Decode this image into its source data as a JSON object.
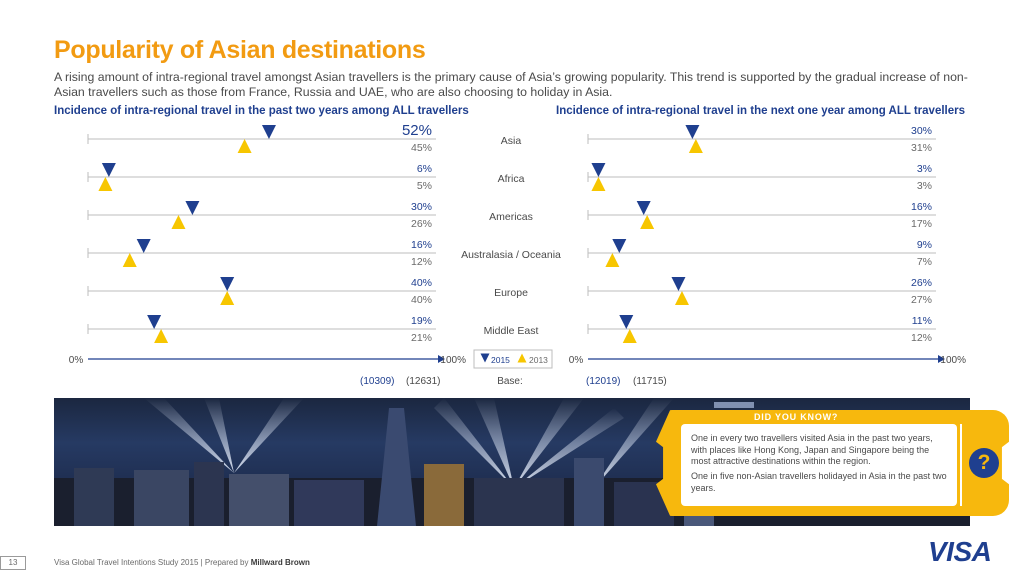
{
  "page": {
    "title": "Popularity of Asian destinations",
    "subtitle": "A rising amount of intra-regional travel amongst Asian travellers is the primary cause of Asia’s growing popularity. This trend is supported by the gradual increase of non-Asian travellers such as those from France, Russia and UAE, who are also choosing to holiday in Asia."
  },
  "chart_data": {
    "type": "dot-plot",
    "categories": [
      "Asia",
      "Africa",
      "Americas",
      "Australasia / Oceania",
      "Europe",
      "Middle East"
    ],
    "legend": [
      {
        "label": "2015",
        "marker": "triangle-down",
        "color": "#1f3f8f"
      },
      {
        "label": "2013",
        "marker": "triangle-up",
        "color": "#f7c600"
      }
    ],
    "axis": {
      "min_label": "0%",
      "max_label": "100%",
      "range": [
        0,
        100
      ]
    },
    "base_label": "Base:",
    "panels": [
      {
        "title": "Incidence of intra-regional travel in the past two years among ALL travellers",
        "values_2015": [
          52,
          6,
          30,
          16,
          40,
          19
        ],
        "values_2013": [
          45,
          5,
          26,
          12,
          40,
          21
        ],
        "labels_2015": [
          "52%",
          "6%",
          "30%",
          "16%",
          "40%",
          "19%"
        ],
        "labels_2013": [
          "45%",
          "5%",
          "26%",
          "12%",
          "40%",
          "21%"
        ],
        "base": [
          "(10309)",
          "(12631)"
        ]
      },
      {
        "title": "Incidence of intra-regional travel in the next one year among ALL travellers",
        "values_2015": [
          30,
          3,
          16,
          9,
          26,
          11
        ],
        "values_2013": [
          31,
          3,
          17,
          7,
          27,
          12
        ],
        "labels_2015": [
          "30%",
          "3%",
          "16%",
          "9%",
          "26%",
          "11%"
        ],
        "labels_2013": [
          "31%",
          "3%",
          "17%",
          "7%",
          "27%",
          "12%"
        ],
        "base": [
          "(12019)",
          "(11715)"
        ]
      }
    ]
  },
  "did_you_know": {
    "heading": "DID YOU KNOW?",
    "para1": "One in every two travellers visited Asia in the past two years, with places like Hong Kong, Japan and Singapore being the most attractive destinations within the region.",
    "para2": "One in five non-Asian travellers holidayed in Asia in the past two years.",
    "icon": "?"
  },
  "footer": {
    "page_number": "13",
    "text": "Visa Global Travel Intentions Study 2015 | Prepared by ",
    "brand": "Millward Brown",
    "logo": "VISA"
  }
}
